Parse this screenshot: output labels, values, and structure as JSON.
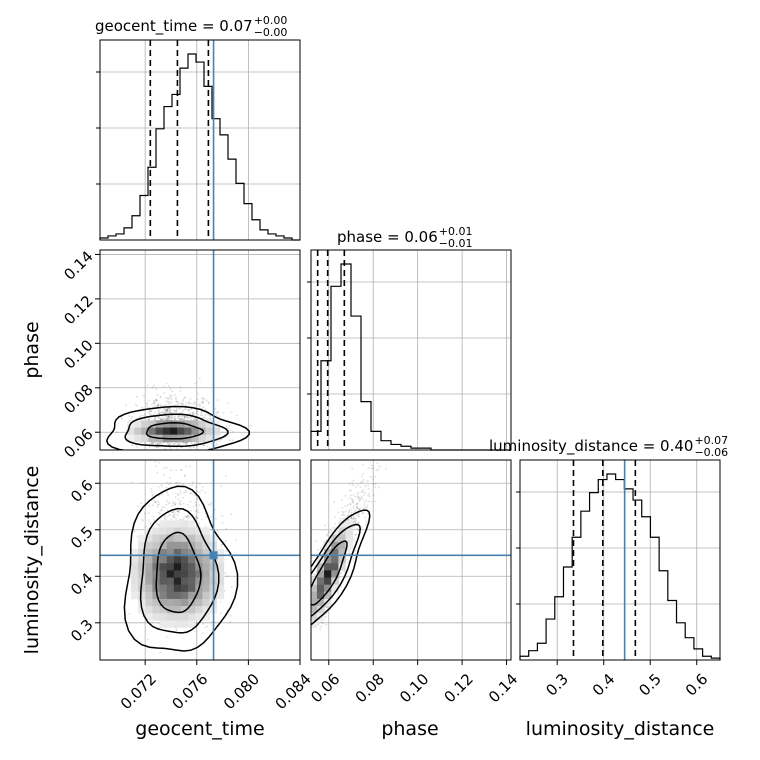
{
  "chart_data": {
    "type": "corner",
    "params": [
      "geocent_time",
      "phase",
      "luminosity_distance"
    ],
    "axis_labels": {
      "x": [
        "geocent_time",
        "phase",
        "luminosity_distance"
      ],
      "y": [
        "",
        "phase",
        "luminosity_distance"
      ]
    },
    "ranges": [
      [
        0.0685,
        0.084
      ],
      [
        0.052,
        0.142
      ],
      [
        0.22,
        0.65
      ]
    ],
    "ticks": [
      [
        0.072,
        0.076,
        0.08,
        0.084
      ],
      [
        0.06,
        0.08,
        0.1,
        0.12,
        0.14
      ],
      [
        0.3,
        0.4,
        0.5,
        0.6
      ]
    ],
    "tick_labels": [
      [
        "0.072",
        "0.076",
        "0.080",
        "0.084"
      ],
      [
        "0.06",
        "0.08",
        "0.10",
        "0.12",
        "0.14"
      ],
      [
        "0.3",
        "0.4",
        "0.5",
        "0.6"
      ]
    ],
    "y_tick_labels": {
      "phase": [
        "0.06",
        "0.08",
        "0.10",
        "0.12",
        "0.14"
      ],
      "luminosity_distance": [
        "0.3",
        "0.4",
        "0.5",
        "0.6"
      ]
    },
    "truths": [
      0.0773,
      null,
      0.445
    ],
    "truth_color": "#4682b4",
    "titles": [
      {
        "name": "geocent_time",
        "text": "geocent_time = 0.07",
        "sup": "+0.00",
        "sub": "−0.00"
      },
      {
        "name": "phase",
        "text": "phase = 0.06",
        "sup": "+0.01",
        "sub": "−0.01"
      },
      {
        "name": "luminosity_distance",
        "text": "luminosity_distance = 0.40",
        "sup": "+0.07",
        "sub": "−0.06"
      }
    ],
    "quantiles": [
      [
        0.0724,
        0.0745,
        0.0769
      ],
      [
        0.055,
        0.0595,
        0.067
      ],
      [
        0.335,
        0.398,
        0.468
      ]
    ],
    "histograms": [
      {
        "param": "geocent_time",
        "edges_from": 0.0685,
        "edges_to": 0.084,
        "counts": [
          1,
          2,
          3,
          6,
          12,
          22,
          36,
          55,
          66,
          72,
          85,
          92,
          88,
          76,
          60,
          52,
          40,
          28,
          18,
          10,
          5,
          3,
          2,
          1,
          0
        ]
      },
      {
        "param": "phase",
        "edges_from": 0.052,
        "edges_to": 0.142,
        "counts": [
          10,
          48,
          88,
          100,
          72,
          26,
          10,
          5,
          3,
          2,
          1,
          1,
          0,
          0,
          0,
          0,
          0,
          0,
          0,
          0
        ]
      },
      {
        "param": "luminosity_distance",
        "edges_from": 0.22,
        "edges_to": 0.65,
        "counts": [
          2,
          5,
          9,
          22,
          34,
          50,
          66,
          80,
          90,
          97,
          100,
          97,
          92,
          86,
          77,
          66,
          48,
          32,
          20,
          12,
          6,
          2,
          1
        ]
      }
    ],
    "grid": true,
    "line_color": "#000000",
    "sample_color": "#000000"
  }
}
